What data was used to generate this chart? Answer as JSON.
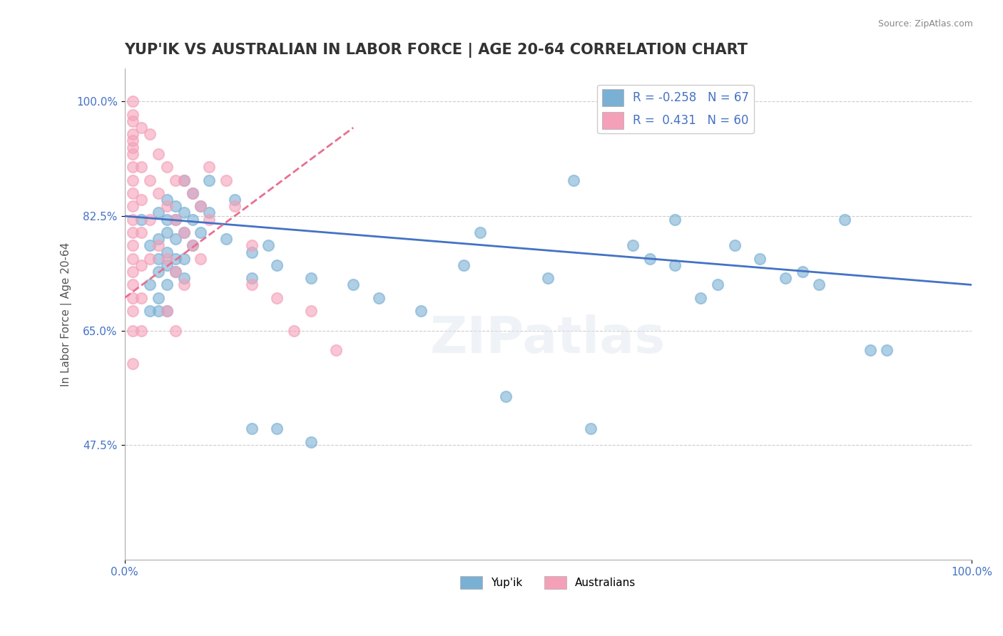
{
  "title": "YUP'IK VS AUSTRALIAN IN LABOR FORCE | AGE 20-64 CORRELATION CHART",
  "source": "Source: ZipAtlas.com",
  "xlabel": "",
  "ylabel": "In Labor Force | Age 20-64",
  "xlim": [
    0.0,
    1.0
  ],
  "ylim": [
    0.3,
    1.05
  ],
  "yticks": [
    0.475,
    0.65,
    0.825,
    1.0
  ],
  "ytick_labels": [
    "47.5%",
    "65.0%",
    "82.5%",
    "100.0%"
  ],
  "xticks": [
    0.0,
    1.0
  ],
  "xtick_labels": [
    "0.0%",
    "100.0%"
  ],
  "legend_entries": [
    {
      "label": "R = -0.258  N = 67",
      "color": "#a8c4e0"
    },
    {
      "label": "R =  0.431  N = 60",
      "color": "#f4b8c8"
    }
  ],
  "watermark": "ZIPatlas",
  "blue_R": -0.258,
  "blue_N": 67,
  "pink_R": 0.431,
  "pink_N": 60,
  "blue_scatter": [
    [
      0.02,
      0.82
    ],
    [
      0.03,
      0.78
    ],
    [
      0.03,
      0.72
    ],
    [
      0.03,
      0.68
    ],
    [
      0.04,
      0.83
    ],
    [
      0.04,
      0.79
    ],
    [
      0.04,
      0.76
    ],
    [
      0.04,
      0.74
    ],
    [
      0.04,
      0.7
    ],
    [
      0.04,
      0.68
    ],
    [
      0.05,
      0.85
    ],
    [
      0.05,
      0.82
    ],
    [
      0.05,
      0.8
    ],
    [
      0.05,
      0.77
    ],
    [
      0.05,
      0.75
    ],
    [
      0.05,
      0.72
    ],
    [
      0.05,
      0.68
    ],
    [
      0.06,
      0.84
    ],
    [
      0.06,
      0.82
    ],
    [
      0.06,
      0.79
    ],
    [
      0.06,
      0.76
    ],
    [
      0.06,
      0.74
    ],
    [
      0.07,
      0.88
    ],
    [
      0.07,
      0.83
    ],
    [
      0.07,
      0.8
    ],
    [
      0.07,
      0.76
    ],
    [
      0.07,
      0.73
    ],
    [
      0.08,
      0.86
    ],
    [
      0.08,
      0.82
    ],
    [
      0.08,
      0.78
    ],
    [
      0.09,
      0.84
    ],
    [
      0.09,
      0.8
    ],
    [
      0.1,
      0.88
    ],
    [
      0.1,
      0.83
    ],
    [
      0.12,
      0.79
    ],
    [
      0.13,
      0.85
    ],
    [
      0.15,
      0.77
    ],
    [
      0.15,
      0.73
    ],
    [
      0.15,
      0.5
    ],
    [
      0.17,
      0.78
    ],
    [
      0.18,
      0.75
    ],
    [
      0.18,
      0.5
    ],
    [
      0.22,
      0.73
    ],
    [
      0.22,
      0.48
    ],
    [
      0.27,
      0.72
    ],
    [
      0.3,
      0.7
    ],
    [
      0.35,
      0.68
    ],
    [
      0.4,
      0.75
    ],
    [
      0.42,
      0.8
    ],
    [
      0.45,
      0.55
    ],
    [
      0.5,
      0.73
    ],
    [
      0.53,
      0.88
    ],
    [
      0.55,
      0.5
    ],
    [
      0.6,
      0.78
    ],
    [
      0.62,
      0.76
    ],
    [
      0.65,
      0.82
    ],
    [
      0.65,
      0.75
    ],
    [
      0.68,
      0.7
    ],
    [
      0.7,
      0.72
    ],
    [
      0.72,
      0.78
    ],
    [
      0.75,
      0.76
    ],
    [
      0.78,
      0.73
    ],
    [
      0.8,
      0.74
    ],
    [
      0.82,
      0.72
    ],
    [
      0.85,
      0.82
    ],
    [
      0.88,
      0.62
    ],
    [
      0.9,
      0.62
    ]
  ],
  "pink_scatter": [
    [
      0.01,
      1.0
    ],
    [
      0.01,
      0.98
    ],
    [
      0.01,
      0.97
    ],
    [
      0.01,
      0.95
    ],
    [
      0.01,
      0.94
    ],
    [
      0.01,
      0.93
    ],
    [
      0.01,
      0.92
    ],
    [
      0.01,
      0.9
    ],
    [
      0.01,
      0.88
    ],
    [
      0.01,
      0.86
    ],
    [
      0.01,
      0.84
    ],
    [
      0.01,
      0.82
    ],
    [
      0.01,
      0.8
    ],
    [
      0.01,
      0.78
    ],
    [
      0.01,
      0.76
    ],
    [
      0.01,
      0.74
    ],
    [
      0.01,
      0.72
    ],
    [
      0.01,
      0.7
    ],
    [
      0.01,
      0.68
    ],
    [
      0.01,
      0.65
    ],
    [
      0.01,
      0.6
    ],
    [
      0.02,
      0.96
    ],
    [
      0.02,
      0.9
    ],
    [
      0.02,
      0.85
    ],
    [
      0.02,
      0.8
    ],
    [
      0.02,
      0.75
    ],
    [
      0.02,
      0.7
    ],
    [
      0.02,
      0.65
    ],
    [
      0.03,
      0.95
    ],
    [
      0.03,
      0.88
    ],
    [
      0.03,
      0.82
    ],
    [
      0.03,
      0.76
    ],
    [
      0.04,
      0.92
    ],
    [
      0.04,
      0.86
    ],
    [
      0.04,
      0.78
    ],
    [
      0.05,
      0.9
    ],
    [
      0.05,
      0.84
    ],
    [
      0.05,
      0.76
    ],
    [
      0.05,
      0.68
    ],
    [
      0.06,
      0.88
    ],
    [
      0.06,
      0.82
    ],
    [
      0.06,
      0.74
    ],
    [
      0.06,
      0.65
    ],
    [
      0.07,
      0.88
    ],
    [
      0.07,
      0.8
    ],
    [
      0.07,
      0.72
    ],
    [
      0.08,
      0.86
    ],
    [
      0.08,
      0.78
    ],
    [
      0.09,
      0.84
    ],
    [
      0.09,
      0.76
    ],
    [
      0.1,
      0.9
    ],
    [
      0.1,
      0.82
    ],
    [
      0.12,
      0.88
    ],
    [
      0.13,
      0.84
    ],
    [
      0.15,
      0.78
    ],
    [
      0.15,
      0.72
    ],
    [
      0.18,
      0.7
    ],
    [
      0.2,
      0.65
    ],
    [
      0.22,
      0.68
    ],
    [
      0.25,
      0.62
    ]
  ],
  "blue_line_x": [
    0.0,
    1.0
  ],
  "blue_line_y": [
    0.825,
    0.72
  ],
  "pink_line_x": [
    0.0,
    0.27
  ],
  "pink_line_y": [
    0.7,
    0.96
  ],
  "scatter_size": 120,
  "blue_color": "#7ab0d4",
  "pink_color": "#f4a0b8",
  "blue_line_color": "#4472c4",
  "pink_line_color": "#e87090",
  "grid_color": "#cccccc",
  "background_color": "#ffffff",
  "title_fontsize": 15,
  "axis_label_fontsize": 11,
  "tick_fontsize": 11
}
